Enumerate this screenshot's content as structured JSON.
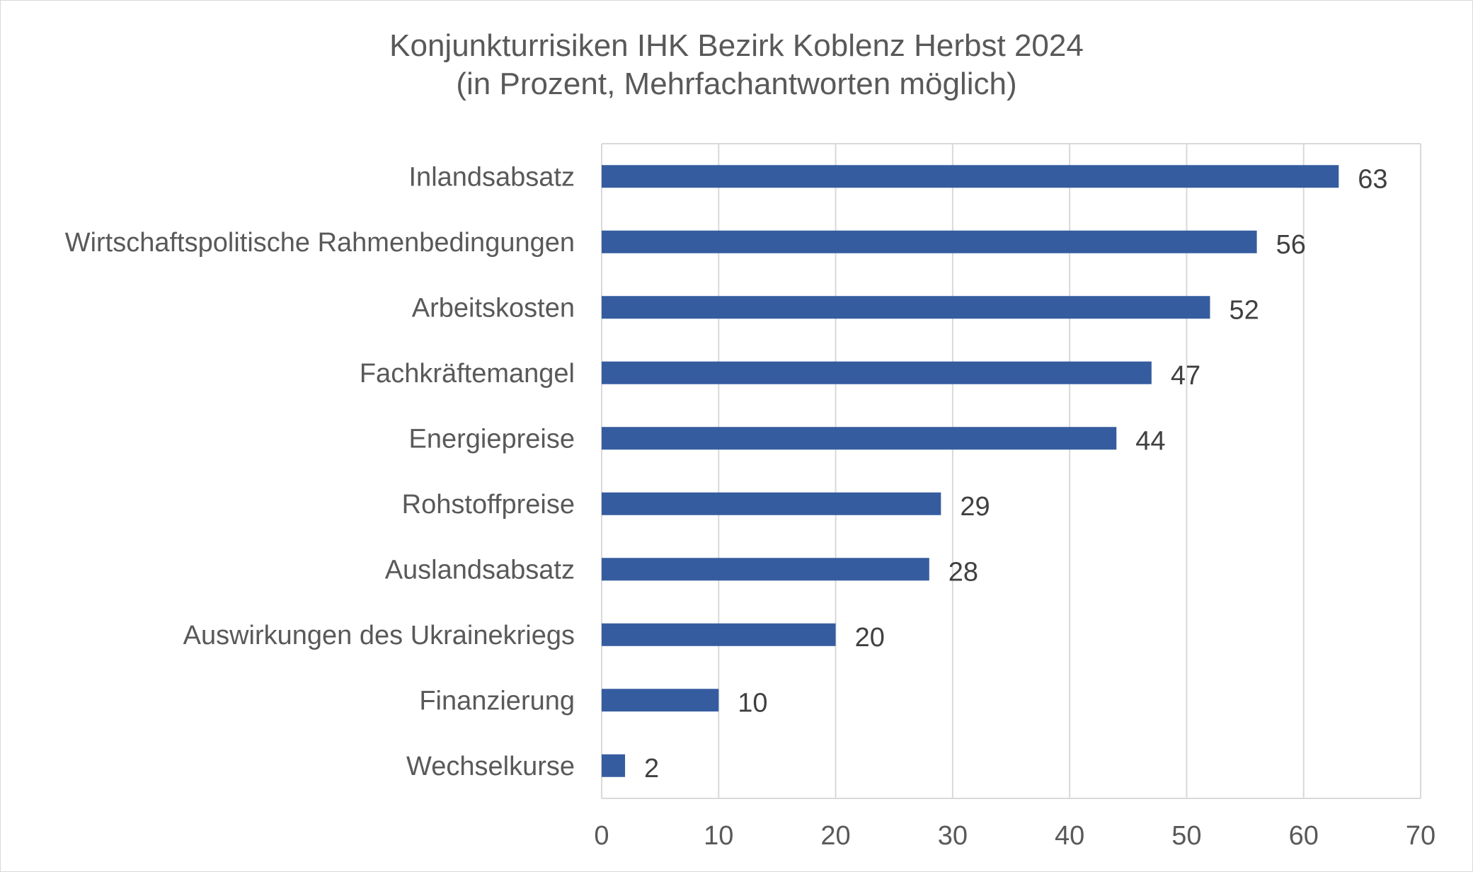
{
  "chart_data": {
    "type": "bar",
    "orientation": "horizontal",
    "title": "Konjunkturrisiken IHK Bezirk Koblenz Herbst 2024",
    "subtitle": "(in Prozent, Mehrfachantworten möglich)",
    "xlabel": "",
    "ylabel": "",
    "categories": [
      "Inlandsabsatz",
      "Wirtschaftspolitische Rahmenbedingungen",
      "Arbeitskosten",
      "Fachkräftemangel",
      "Energiepreise",
      "Rohstoffpreise",
      "Auslandsabsatz",
      "Auswirkungen des Ukrainekriegs",
      "Finanzierung",
      "Wechselkurse"
    ],
    "values": [
      63,
      56,
      52,
      47,
      44,
      29,
      28,
      20,
      10,
      2
    ],
    "xlim": [
      0,
      70
    ],
    "xticks": [
      "0",
      "10",
      "20",
      "30",
      "40",
      "50",
      "60",
      "70"
    ],
    "grid": "vertical",
    "legend": "none",
    "colors": {
      "bar": "#355c9f",
      "grid": "#d9d9d9",
      "text": "#595959",
      "data_label": "#404040"
    }
  }
}
